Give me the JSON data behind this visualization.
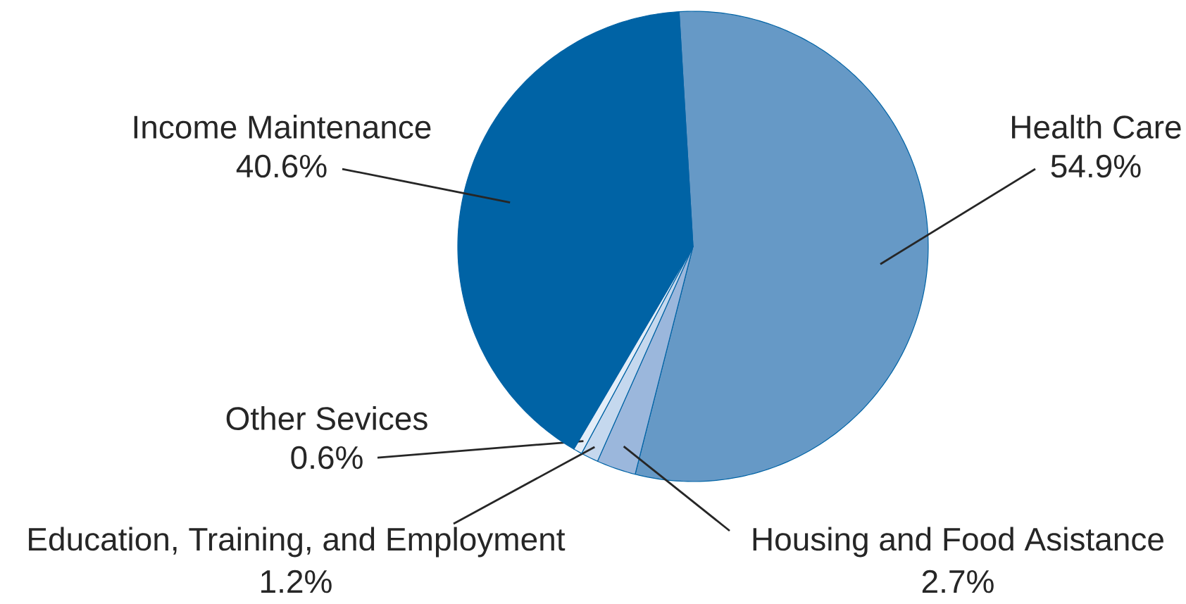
{
  "chart_data": {
    "type": "pie",
    "categories": [
      "Health Care",
      "Housing and Food Asistance",
      "Education, Training, and Employment",
      "Other Sevices",
      "Income Maintenance"
    ],
    "values": [
      54.9,
      2.7,
      1.2,
      0.6,
      40.6
    ],
    "colors": [
      "#6699c6",
      "#9bb7dc",
      "#c5d8ee",
      "#e3edf8",
      "#0063a5"
    ],
    "value_labels": [
      "54.9%",
      "2.7%",
      "1.2%",
      "0.6%",
      "40.6%"
    ]
  }
}
